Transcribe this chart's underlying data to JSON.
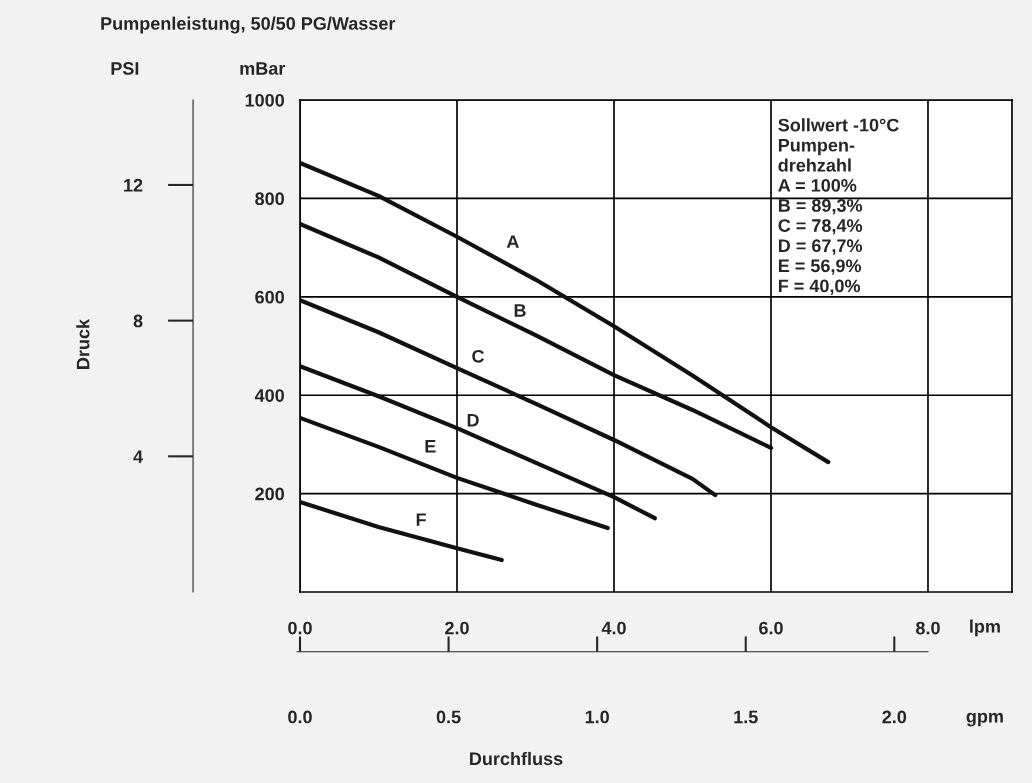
{
  "chart_data": {
    "type": "line",
    "title": "Pumpenleistung, 50/50 PG/Wasser",
    "xlabel": "lpm",
    "ylabel": "mBar",
    "y2label": "PSI",
    "x2label": "gpm",
    "xlim": [
      0,
      9.07
    ],
    "xticks": [
      {
        "value": 0,
        "label": "0.0"
      },
      {
        "value": 2,
        "label": "2.0"
      },
      {
        "value": 4,
        "label": "4.0"
      },
      {
        "value": 6,
        "label": "6.0"
      },
      {
        "value": 8,
        "label": "8.0"
      }
    ],
    "ylim": [
      0,
      1000
    ],
    "yticks": [
      200,
      400,
      600,
      800,
      1000
    ],
    "y2lim": [
      0,
      14.504
    ],
    "y2ticks": [
      4,
      8,
      12
    ],
    "x2lim": [
      0,
      2.396
    ],
    "x2ticks": [
      {
        "value": 0,
        "label": "0.0"
      },
      {
        "value": 0.5,
        "label": "0.5"
      },
      {
        "value": 1.0,
        "label": "1.0"
      },
      {
        "value": 1.5,
        "label": "1.5"
      },
      {
        "value": 2.0,
        "label": "2.0"
      }
    ],
    "grid": true,
    "line_style": "solid",
    "marker": "none",
    "series": [
      {
        "color": "#111111",
        "x": [
          0,
          1,
          2,
          3,
          4,
          5,
          6,
          6.73
        ],
        "values": [
          872,
          805,
          722,
          635,
          540,
          440,
          335,
          264
        ]
      },
      {
        "color": "#111111",
        "x": [
          0,
          1,
          2,
          3,
          4,
          5,
          6
        ],
        "values": [
          748,
          680,
          600,
          522,
          441,
          370,
          293
        ]
      },
      {
        "color": "#111111",
        "x": [
          0,
          1,
          2,
          3,
          4,
          5,
          5.29
        ],
        "values": [
          593,
          528,
          455,
          383,
          309,
          230,
          197
        ]
      },
      {
        "color": "#111111",
        "x": [
          0,
          1,
          2,
          3,
          4,
          4.52
        ],
        "values": [
          459,
          398,
          333,
          263,
          193,
          150
        ]
      },
      {
        "color": "#111111",
        "x": [
          0,
          1,
          2,
          3,
          3.92
        ],
        "values": [
          354,
          295,
          232,
          178,
          130
        ]
      },
      {
        "color": "#111111",
        "x": [
          0,
          1,
          2,
          2.57
        ],
        "values": [
          183,
          132,
          89,
          65
        ]
      }
    ],
    "annotations": [
      "A",
      "B",
      "C",
      "D",
      "E",
      "F",
      "Sollwert -10°C\nPumpen-\ndrehzahl\nA = 100%\nB = 89,3%\nC = 78,4%\nD = 67,7%\nE = 56,9%\nF = 40,0%",
      "Druck",
      "Durchfluss"
    ]
  }
}
